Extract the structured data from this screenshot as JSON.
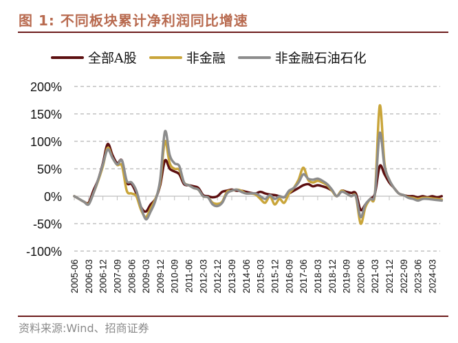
{
  "header": {
    "title": "图 1:  不同板块累计净利润同比增速"
  },
  "legend": [
    {
      "label": "全部A股",
      "color": "#5c0f10"
    },
    {
      "label": "非金融",
      "color": "#c9a53a"
    },
    {
      "label": "非金融石油石化",
      "color": "#8c8c8c"
    }
  ],
  "footer": {
    "source": "资料来源:Wind、招商证券"
  },
  "chart_data": {
    "type": "line",
    "title": "不同板块累计净利润同比增速",
    "xlabel": "",
    "ylabel": "",
    "ylim": [
      -100,
      200
    ],
    "yticks": [
      "200%",
      "150%",
      "100%",
      "50%",
      "0%",
      "-50%",
      "-100%"
    ],
    "ytick_values": [
      200,
      150,
      100,
      50,
      0,
      -50,
      -100
    ],
    "grid": "horizontal dashed",
    "legend_position": "top",
    "xtick_labels": [
      "2005-06",
      "2006-03",
      "2006-12",
      "2007-09",
      "2008-06",
      "2009-03",
      "2009-12",
      "2010-09",
      "2011-06",
      "2012-03",
      "2012-12",
      "2013-09",
      "2014-06",
      "2015-03",
      "2015-12",
      "2016-09",
      "2017-06",
      "2018-03",
      "2018-12",
      "2019-09",
      "2020-06",
      "2021-03",
      "2021-12",
      "2022-09",
      "2023-06",
      "2024-03"
    ],
    "x": [
      "2005-06",
      "2005-09",
      "2005-12",
      "2006-03",
      "2006-06",
      "2006-09",
      "2006-12",
      "2007-03",
      "2007-06",
      "2007-09",
      "2007-12",
      "2008-03",
      "2008-06",
      "2008-09",
      "2008-12",
      "2009-03",
      "2009-06",
      "2009-09",
      "2009-12",
      "2010-03",
      "2010-06",
      "2010-09",
      "2010-12",
      "2011-03",
      "2011-06",
      "2011-09",
      "2011-12",
      "2012-03",
      "2012-06",
      "2012-09",
      "2012-12",
      "2013-03",
      "2013-06",
      "2013-09",
      "2013-12",
      "2014-03",
      "2014-06",
      "2014-09",
      "2014-12",
      "2015-03",
      "2015-06",
      "2015-09",
      "2015-12",
      "2016-03",
      "2016-06",
      "2016-09",
      "2016-12",
      "2017-03",
      "2017-06",
      "2017-09",
      "2017-12",
      "2018-03",
      "2018-06",
      "2018-09",
      "2018-12",
      "2019-03",
      "2019-06",
      "2019-09",
      "2019-12",
      "2020-03",
      "2020-06",
      "2020-09",
      "2020-12",
      "2021-03",
      "2021-06",
      "2021-09",
      "2021-12",
      "2022-03",
      "2022-06",
      "2022-09",
      "2022-12",
      "2023-03",
      "2023-06",
      "2023-09",
      "2023-12",
      "2024-03",
      "2024-06",
      "2024-09"
    ],
    "series": [
      {
        "name": "全部A股",
        "color": "#5c0f10",
        "values": [
          0,
          -5,
          -10,
          -12,
          10,
          30,
          60,
          95,
          75,
          60,
          65,
          25,
          22,
          5,
          -20,
          -28,
          -15,
          -5,
          20,
          65,
          50,
          45,
          40,
          22,
          20,
          18,
          15,
          2,
          0,
          -2,
          0,
          8,
          10,
          12,
          10,
          10,
          8,
          6,
          5,
          8,
          5,
          3,
          2,
          0,
          -2,
          5,
          10,
          15,
          20,
          22,
          18,
          20,
          18,
          15,
          10,
          0,
          10,
          8,
          6,
          5,
          -25,
          -15,
          -5,
          5,
          55,
          40,
          25,
          15,
          5,
          2,
          0,
          0,
          -2,
          0,
          -2,
          0,
          -2,
          0
        ]
      },
      {
        "name": "非金融",
        "color": "#c9a53a",
        "values": [
          0,
          -5,
          -10,
          -14,
          5,
          28,
          55,
          88,
          70,
          57,
          55,
          10,
          5,
          0,
          -25,
          -38,
          -22,
          -5,
          25,
          100,
          60,
          50,
          48,
          25,
          20,
          15,
          12,
          0,
          -2,
          -12,
          -14,
          -10,
          8,
          10,
          12,
          10,
          5,
          5,
          3,
          -5,
          -12,
          0,
          -15,
          -5,
          -12,
          5,
          15,
          30,
          52,
          30,
          25,
          28,
          25,
          20,
          10,
          0,
          10,
          5,
          0,
          0,
          -50,
          -20,
          -5,
          5,
          165,
          60,
          30,
          15,
          5,
          2,
          -2,
          -3,
          -5,
          -3,
          -3,
          -4,
          -5,
          -6
        ]
      },
      {
        "name": "非金融石油石化",
        "color": "#8c8c8c",
        "values": [
          0,
          -5,
          -10,
          -15,
          5,
          30,
          58,
          85,
          70,
          58,
          65,
          28,
          25,
          10,
          -20,
          -42,
          -28,
          -8,
          30,
          118,
          75,
          60,
          55,
          25,
          20,
          15,
          12,
          0,
          -2,
          -15,
          -18,
          -12,
          5,
          10,
          12,
          8,
          5,
          5,
          5,
          0,
          -5,
          2,
          -5,
          0,
          -2,
          10,
          15,
          25,
          40,
          32,
          30,
          32,
          28,
          22,
          12,
          0,
          8,
          5,
          0,
          0,
          -38,
          -15,
          -5,
          5,
          115,
          55,
          30,
          15,
          5,
          2,
          -3,
          -5,
          -8,
          -5,
          -5,
          -6,
          -7,
          -8
        ]
      }
    ]
  }
}
